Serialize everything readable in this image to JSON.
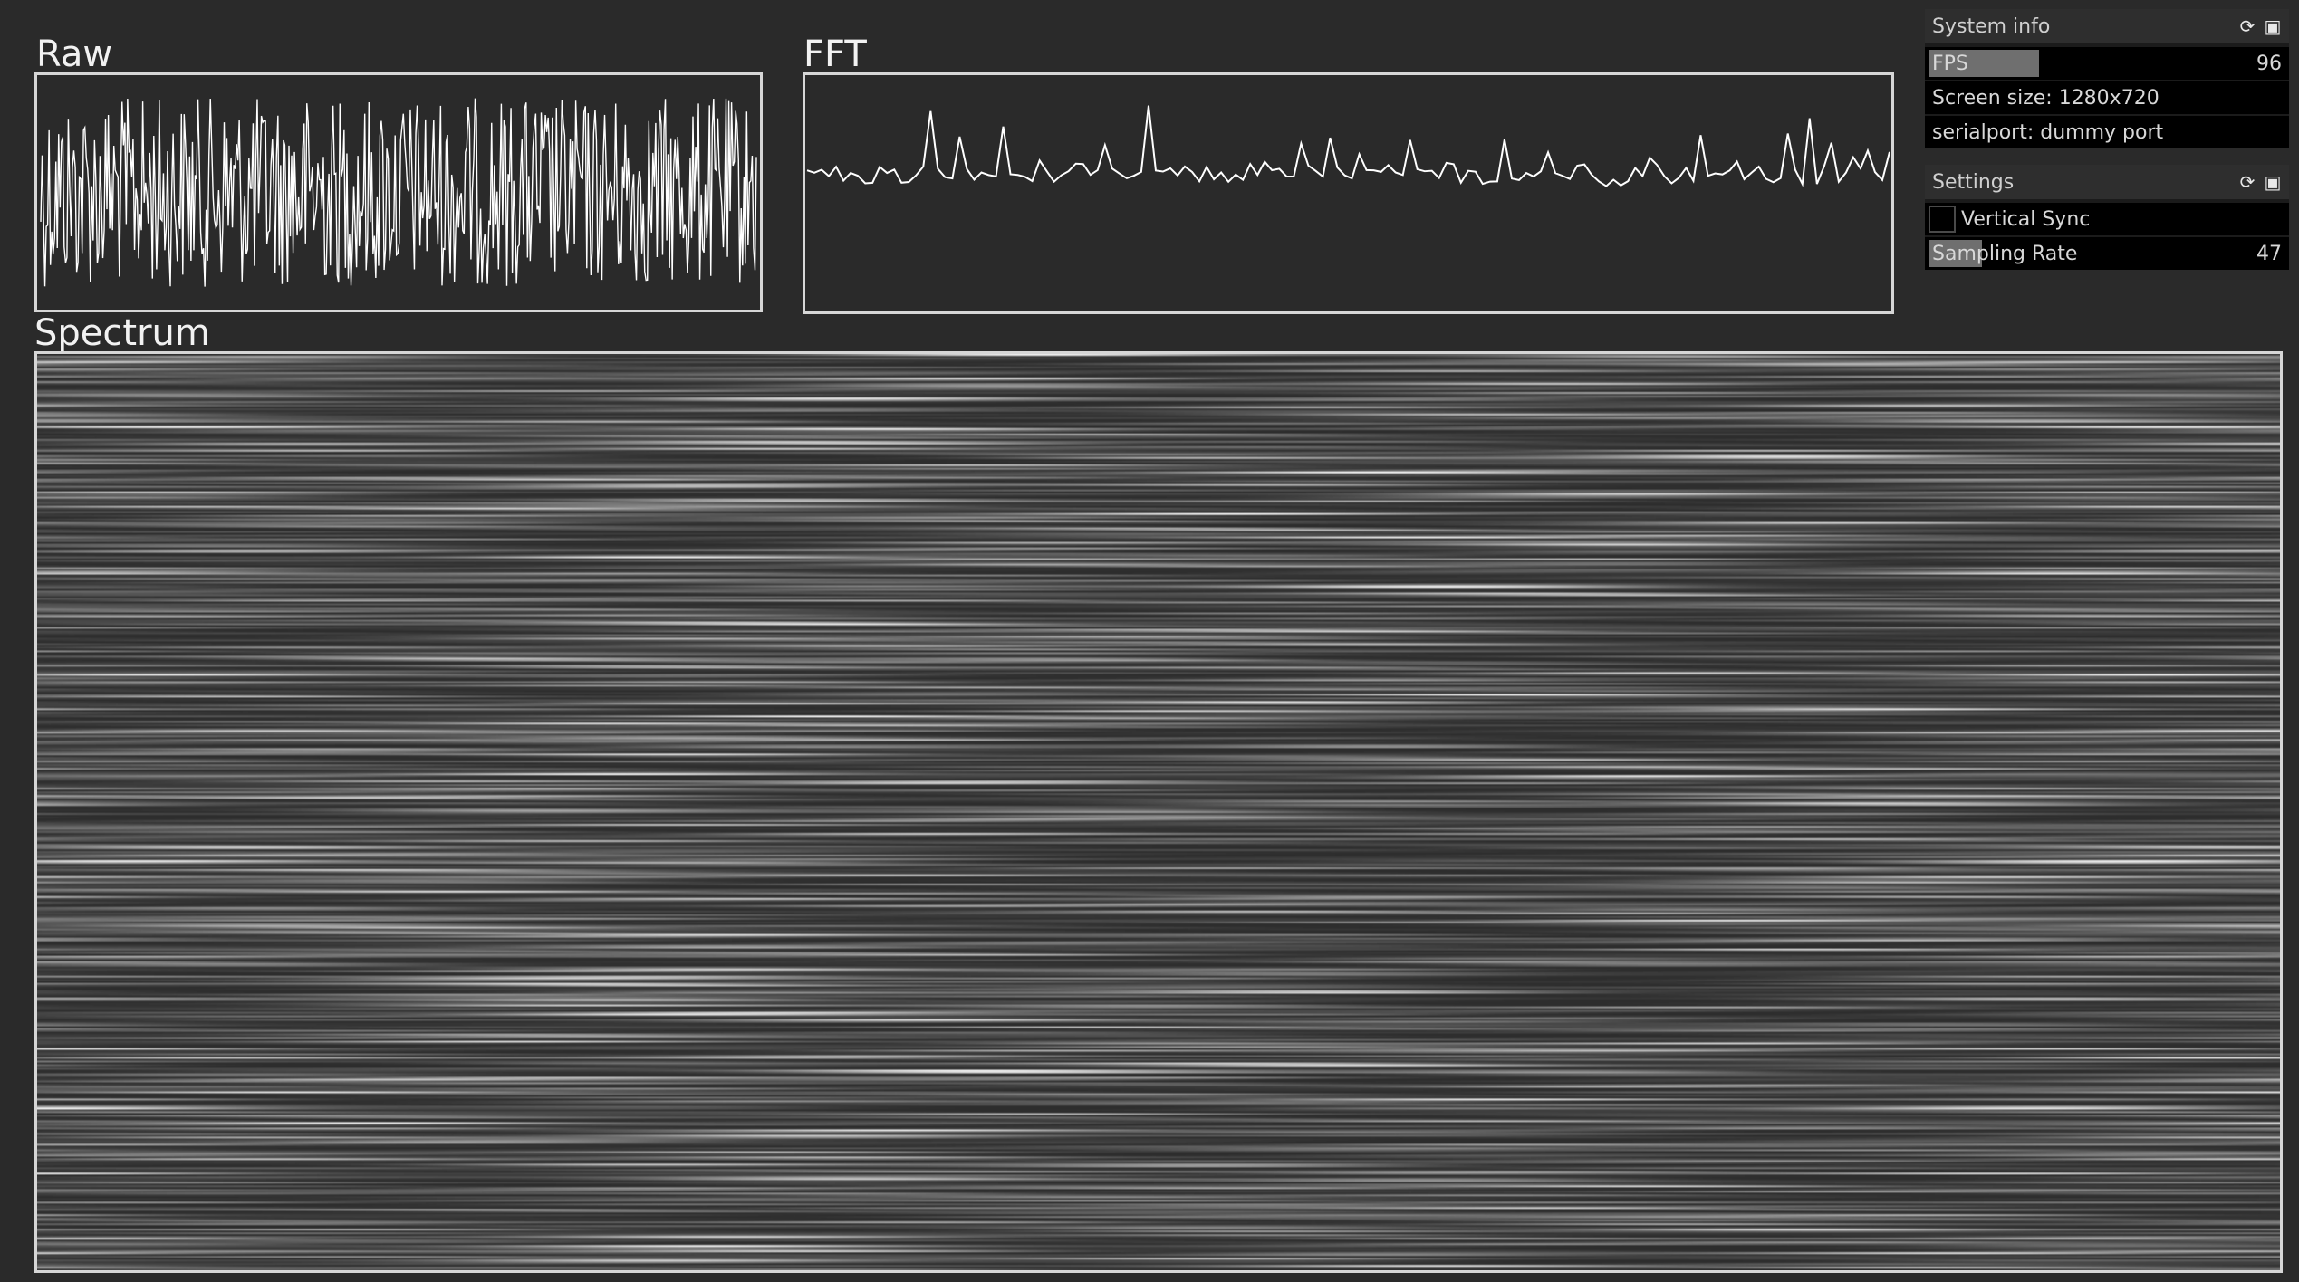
{
  "plots": {
    "raw": {
      "title": "Raw"
    },
    "fft": {
      "title": "FFT"
    },
    "spectrum": {
      "title": "Spectrum"
    }
  },
  "system_info": {
    "title": "System info",
    "fps": {
      "label": "FPS",
      "value": "96",
      "fill_fraction": 0.31
    },
    "screen_size": "Screen size: 1280x720",
    "serialport": "serialport: dummy port"
  },
  "settings": {
    "title": "Settings",
    "vertical_sync": {
      "label": "Vertical Sync",
      "checked": false
    },
    "sampling_rate": {
      "label": "Sampling Rate",
      "value": "47",
      "fill_fraction": 0.15
    }
  },
  "icons": {
    "reload": "reload-icon",
    "save": "save-icon"
  },
  "colors": {
    "background": "#2a2a2a",
    "panel": "#000000",
    "header": "#2e2e2e",
    "slider_fill": "#6f6f6f",
    "trace": "#ffffff"
  }
}
